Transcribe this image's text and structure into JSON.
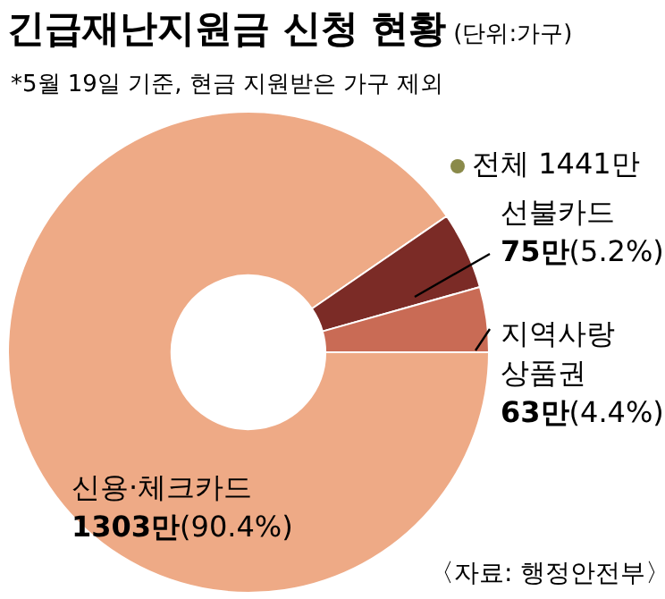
{
  "chart_data": {
    "type": "donut",
    "title": "긴급재난지원금 신청 현황",
    "subtitle": "(단위:가구)",
    "categories": [
      "신용·체크카드",
      "선불카드",
      "지역사랑 상품권"
    ],
    "values": [
      1303,
      75,
      63
    ],
    "value_labels": [
      "1303만(90.4%)",
      "75만(5.2%)",
      "63만(4.4%)"
    ],
    "colors": [
      "#eeaa86",
      "#7b2b26",
      "#c96b55"
    ],
    "annotations": [
      "*5월 19일 기준, 현금 지원받은 가구 제외",
      "전체 1441만",
      "〈자료: 행정안전부〉"
    ],
    "legend": false
  }
}
